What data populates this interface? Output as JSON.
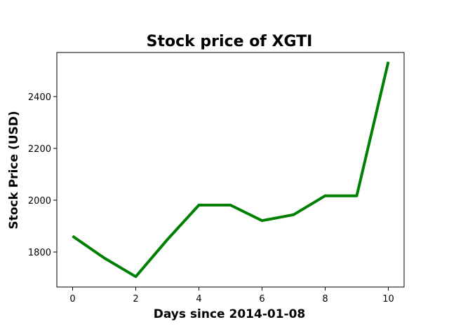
{
  "chart_data": {
    "type": "line",
    "title": "Stock price of XGTI",
    "xlabel": "Days since 2014-01-08",
    "ylabel": "Stock Price (USD)",
    "x": [
      0,
      1,
      2,
      3,
      4,
      5,
      6,
      7,
      8,
      9,
      10
    ],
    "series": [
      {
        "values": [
          1861,
          1777,
          1705,
          1848,
          1981,
          1981,
          1921,
          1944,
          2017,
          2017,
          2534
        ],
        "color": "#008000"
      }
    ],
    "xlim": [
      -0.5,
      10.5
    ],
    "ylim": [
      1665,
      2570
    ],
    "x_ticks": [
      0,
      2,
      4,
      6,
      8,
      10
    ],
    "y_ticks": [
      1800,
      2000,
      2200,
      2400
    ],
    "grid": false,
    "legend": "none"
  }
}
